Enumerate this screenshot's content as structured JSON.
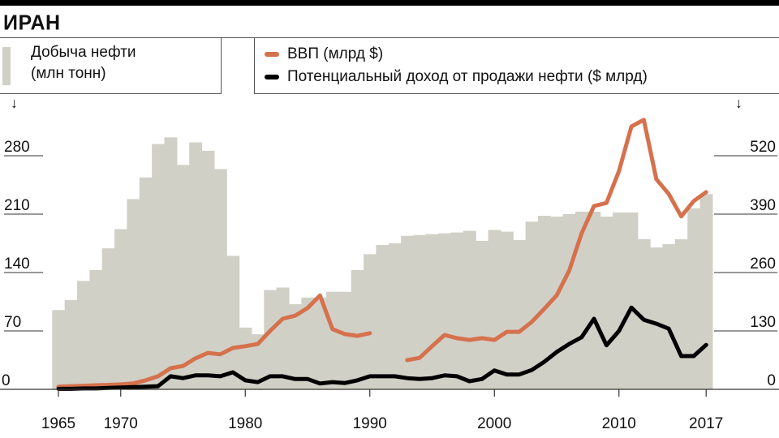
{
  "title": "ИРАН",
  "legend": {
    "bars_label_line1": "Добыча нефти",
    "bars_label_line2": "(млн тонн)",
    "gdp_label": "ВВП (млрд $)",
    "revenue_label": "Потенциальный доход от продажи нефти ($ млрд)"
  },
  "colors": {
    "bars": "#d1d0c6",
    "gdp": "#d5714d",
    "revenue": "#000000"
  },
  "chart_data": {
    "type": "bar+line",
    "title": "ИРАН",
    "x": [
      1965,
      1966,
      1967,
      1968,
      1969,
      1970,
      1971,
      1972,
      1973,
      1974,
      1975,
      1976,
      1977,
      1978,
      1979,
      1980,
      1981,
      1982,
      1983,
      1984,
      1985,
      1986,
      1987,
      1988,
      1989,
      1990,
      1991,
      1992,
      1993,
      1994,
      1995,
      1996,
      1997,
      1998,
      1999,
      2000,
      2001,
      2002,
      2003,
      2004,
      2005,
      2006,
      2007,
      2008,
      2009,
      2010,
      2011,
      2012,
      2013,
      2014,
      2015,
      2016,
      2017
    ],
    "x_tick_labels": [
      "1965",
      "1970",
      "1980",
      "1990",
      "2000",
      "2010",
      "2017"
    ],
    "x_ticks": [
      1965,
      1970,
      1980,
      1990,
      2000,
      2010,
      2017
    ],
    "left_axis": {
      "label": "Добыча нефти (млн тонн)",
      "ylim": [
        0,
        300
      ],
      "ticks": [
        "0",
        "70",
        "140",
        "210",
        "280"
      ],
      "tick_values": [
        0,
        70,
        140,
        210,
        280
      ]
    },
    "right_axis": {
      "label": "млрд $",
      "ylim": [
        0,
        560
      ],
      "ticks": [
        "0",
        "130",
        "260",
        "390",
        "520"
      ],
      "tick_values": [
        0,
        130,
        260,
        390,
        520
      ]
    },
    "series": [
      {
        "name": "Добыча нефти (млн тонн)",
        "type": "bar",
        "axis": "left",
        "values": [
          95,
          107,
          130,
          143,
          169,
          192,
          228,
          254,
          294,
          302,
          269,
          296,
          286,
          264,
          160,
          74,
          66,
          119,
          122,
          102,
          110,
          110,
          117,
          117,
          143,
          162,
          173,
          175,
          184,
          185,
          186,
          187,
          188,
          190,
          178,
          191,
          189,
          179,
          201,
          208,
          207,
          210,
          213,
          213,
          207,
          212,
          212,
          180,
          170,
          174,
          180,
          217,
          234
        ]
      },
      {
        "name": "ВВП (млрд $)",
        "type": "line",
        "axis": "right",
        "values": [
          6,
          7,
          8,
          9,
          10,
          11,
          13,
          20,
          29,
          47,
          52,
          69,
          81,
          78,
          92,
          96,
          101,
          130,
          157,
          164,
          181,
          209,
          134,
          123,
          119,
          125,
          null,
          null,
          65,
          70,
          96,
          121,
          114,
          110,
          114,
          110,
          128,
          128,
          150,
          179,
          209,
          264,
          347,
          408,
          415,
          486,
          585,
          600,
          468,
          435,
          385,
          419,
          439
        ]
      },
      {
        "name": "Потенциальный доход от продажи нефти ($ млрд)",
        "type": "line",
        "axis": "right",
        "values": [
          1,
          1,
          2,
          2,
          3,
          4,
          5,
          6,
          7,
          29,
          25,
          31,
          31,
          29,
          38,
          20,
          16,
          29,
          29,
          23,
          23,
          13,
          16,
          14,
          20,
          29,
          29,
          29,
          25,
          23,
          25,
          31,
          29,
          18,
          23,
          42,
          33,
          33,
          43,
          61,
          83,
          101,
          116,
          157,
          98,
          130,
          182,
          155,
          146,
          135,
          74,
          74,
          99
        ]
      }
    ]
  }
}
